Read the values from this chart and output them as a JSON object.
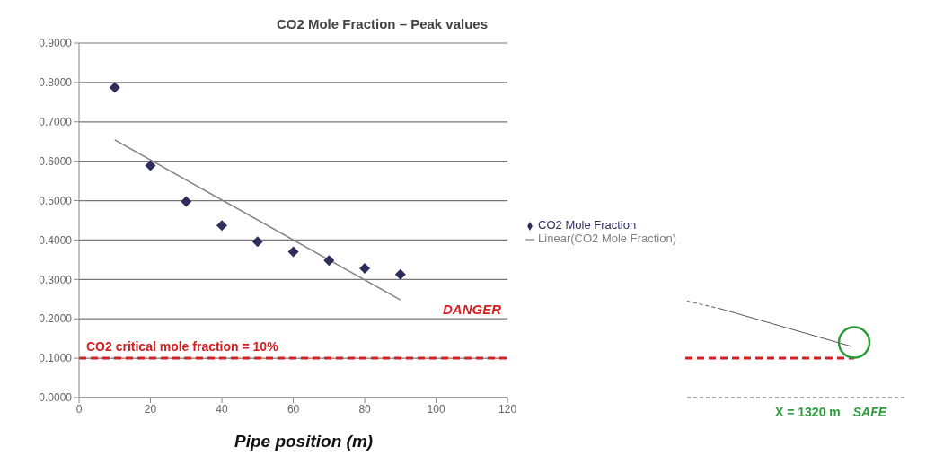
{
  "chart_data": {
    "type": "scatter",
    "title": "CO2 Mole Fraction – Peak values",
    "xlabel": "Pipe position (m)",
    "x": [
      10,
      20,
      30,
      40,
      50,
      60,
      70,
      80,
      90
    ],
    "series": [
      {
        "name": "CO2 Mole Fraction",
        "color": "#2e2e5e",
        "marker": "diamond",
        "values": [
          0.787,
          0.589,
          0.498,
          0.437,
          0.396,
          0.37,
          0.348,
          0.328,
          0.313
        ]
      },
      {
        "name": "Linear(CO2 Mole Fraction)",
        "type": "line",
        "color": "#808080",
        "marker": "none",
        "x": [
          10,
          90
        ],
        "values": [
          0.654,
          0.248
        ]
      }
    ],
    "xlim": [
      0,
      120
    ],
    "xticks": [
      0,
      20,
      40,
      60,
      80,
      100,
      120
    ],
    "ylim": [
      0,
      0.9
    ],
    "yticks": [
      {
        "value": 0,
        "label": "0.0000"
      },
      {
        "value": 0.1,
        "label": "0.1000"
      },
      {
        "value": 0.2,
        "label": "0.2000"
      },
      {
        "value": 0.3,
        "label": "0.3000"
      },
      {
        "value": 0.4,
        "label": "0.4000"
      },
      {
        "value": 0.5,
        "label": "0.5000"
      },
      {
        "value": 0.6,
        "label": "0.6000"
      },
      {
        "value": 0.7,
        "label": "0.7000"
      },
      {
        "value": 0.8,
        "label": "0.8000"
      },
      {
        "value": 0.9,
        "label": "0.9000"
      }
    ],
    "grid": "y",
    "legend": "right",
    "ref_lines": [
      {
        "axis": "y",
        "value": 0.1,
        "label": "CO2 critical mole fraction = 10%",
        "color": "#d42020",
        "line_style": "dashed"
      }
    ],
    "annotations": [
      "DANGER",
      "X = 1320 m",
      "SAFE"
    ]
  }
}
